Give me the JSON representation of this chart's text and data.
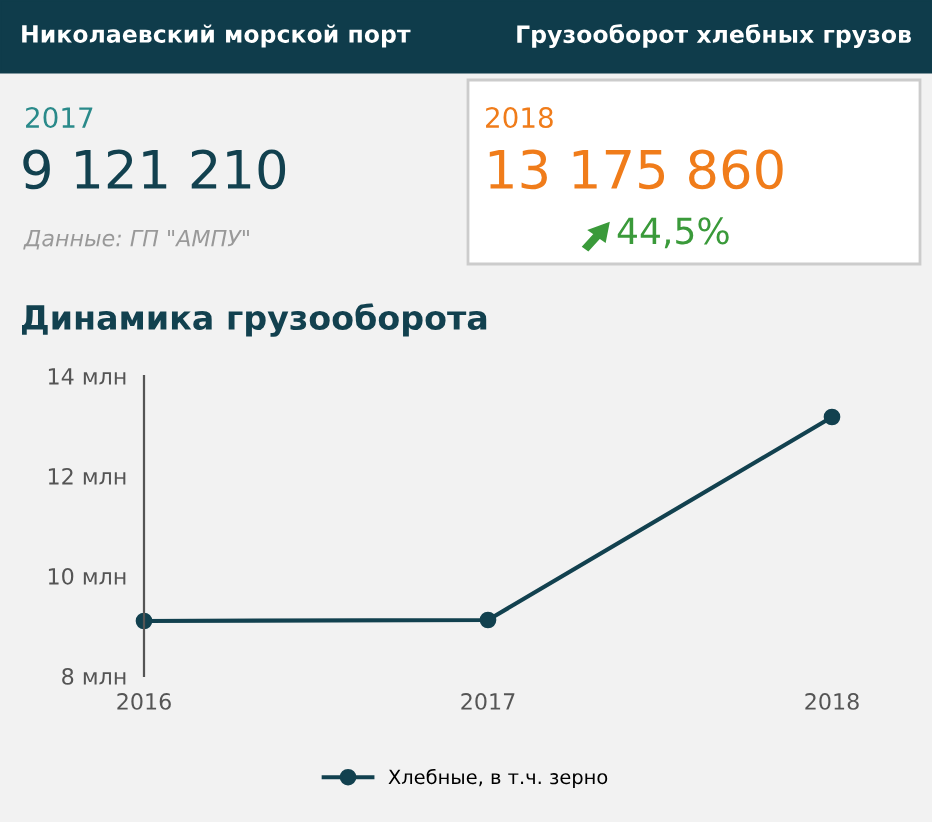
{
  "chart_data": {
    "type": "line",
    "title": "Динамика грузооборота",
    "categories": [
      "2016",
      "2017",
      "2018"
    ],
    "series": [
      {
        "name": "Хлебные, в т.ч. зерно",
        "color": "#12414f",
        "values": [
          9.1,
          9.12,
          13.18
        ]
      }
    ],
    "ylim": [
      8,
      14
    ],
    "yticks": [
      {
        "value": 8,
        "label": "8 млн"
      },
      {
        "value": 10,
        "label": "10 млн"
      },
      {
        "value": 12,
        "label": "12 млн"
      },
      {
        "value": 14,
        "label": "14 млн"
      }
    ],
    "marker": "circle",
    "line_style": "solid",
    "grid": false,
    "legend": "bottom",
    "annotations": [
      "Николаевский морской порт",
      "Грузооборот хлебных грузов",
      "2017",
      "9 121 210",
      "Данные: ГП \"АМПУ\"",
      "2018",
      "13 175 860",
      "44,5%"
    ]
  }
}
